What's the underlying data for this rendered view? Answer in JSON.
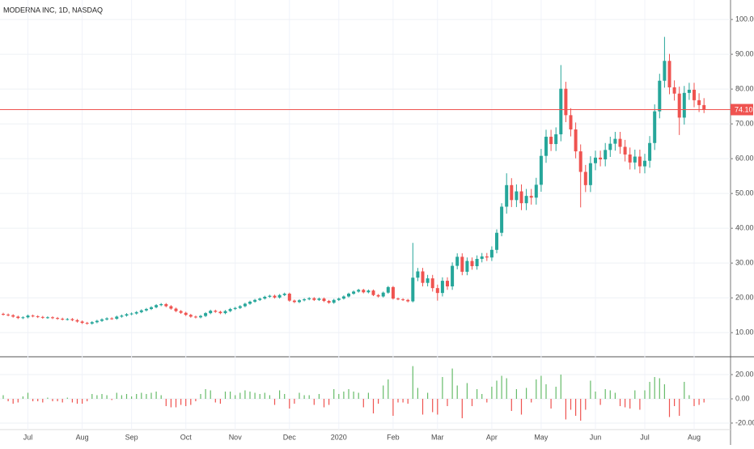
{
  "chart_data": [
    {
      "type": "candlestick",
      "title": "MODERNA INC, 1D, NASDAQ",
      "categories": [
        null,
        null,
        null,
        null,
        null,
        "Jul",
        null,
        null,
        null,
        null,
        null,
        null,
        null,
        null,
        null,
        null,
        "Aug",
        null,
        null,
        null,
        null,
        null,
        null,
        null,
        null,
        null,
        "Sep",
        null,
        null,
        null,
        null,
        null,
        null,
        null,
        null,
        null,
        null,
        "Oct",
        null,
        null,
        null,
        null,
        null,
        null,
        null,
        null,
        null,
        "Nov",
        null,
        null,
        null,
        null,
        null,
        null,
        null,
        null,
        null,
        null,
        "Dec",
        null,
        null,
        null,
        null,
        null,
        null,
        null,
        null,
        null,
        "2020",
        null,
        null,
        null,
        null,
        null,
        null,
        null,
        null,
        null,
        null,
        "Feb",
        null,
        null,
        null,
        null,
        null,
        null,
        null,
        null,
        "Mar",
        null,
        null,
        null,
        null,
        null,
        null,
        null,
        null,
        null,
        null,
        "Apr",
        null,
        null,
        null,
        null,
        null,
        null,
        null,
        null,
        null,
        "May",
        null,
        null,
        null,
        null,
        null,
        null,
        null,
        null,
        null,
        null,
        "Jun",
        null,
        null,
        null,
        null,
        null,
        null,
        null,
        null,
        null,
        "Jul",
        null,
        null,
        null,
        null,
        null,
        null,
        null,
        null,
        null,
        "Aug",
        null,
        null
      ],
      "open": [
        15.4,
        15.2,
        15.0,
        14.6,
        14.2,
        14.4,
        14.9,
        14.7,
        14.5,
        14.3,
        14.4,
        14.2,
        14.0,
        13.8,
        13.9,
        13.6,
        13.2,
        12.8,
        12.6,
        13.0,
        13.4,
        13.8,
        14.1,
        14.0,
        14.6,
        14.9,
        15.3,
        15.5,
        15.9,
        16.4,
        16.8,
        17.3,
        17.9,
        18.2,
        17.6,
        16.9,
        16.2,
        15.7,
        15.1,
        14.6,
        14.4,
        14.8,
        15.6,
        16.3,
        16.0,
        15.6,
        16.2,
        16.8,
        17.1,
        17.6,
        18.3,
        18.9,
        19.4,
        19.8,
        20.3,
        20.6,
        20.1,
        20.8,
        21.2,
        19.2,
        18.8,
        19.3,
        19.6,
        19.9,
        19.4,
        19.8,
        19.1,
        18.6,
        19.4,
        19.8,
        20.4,
        21.2,
        21.8,
        22.3,
        21.6,
        22.1,
        20.8,
        20.4,
        21.5,
        23.1,
        19.8,
        19.6,
        19.4,
        19.0,
        25.8,
        27.6,
        24.3,
        25.6,
        22.8,
        21.4,
        24.9,
        23.3,
        29.2,
        31.8,
        27.5,
        30.6,
        29.1,
        31.2,
        31.9,
        31.6,
        33.8,
        38.7,
        46.2,
        52.4,
        48.1,
        50.6,
        47.2,
        49.3,
        48.8,
        52.5,
        60.8,
        66.3,
        64.2,
        67.0,
        80.1,
        72.5,
        68.4,
        62.1,
        56.2,
        52.4,
        58.7,
        60.3,
        59.8,
        62.5,
        64.3,
        65.7,
        63.4,
        61.2,
        58.9,
        60.6,
        57.8,
        59.4,
        64.5,
        73.6,
        82.4,
        88.1,
        80.5,
        78.7,
        71.8,
        78.9,
        79.8,
        76.8,
        75.4
      ],
      "high": [
        15.7,
        15.5,
        15.3,
        14.9,
        14.7,
        15.2,
        15.2,
        15.0,
        14.8,
        14.7,
        14.7,
        14.5,
        14.3,
        14.2,
        14.2,
        13.9,
        13.5,
        13.1,
        13.3,
        13.7,
        14.1,
        14.4,
        14.4,
        14.9,
        15.2,
        15.6,
        15.8,
        16.2,
        16.7,
        17.1,
        17.6,
        18.2,
        18.5,
        18.5,
        17.9,
        17.2,
        16.5,
        16.0,
        15.4,
        14.9,
        15.1,
        15.9,
        16.6,
        16.6,
        16.3,
        16.5,
        17.1,
        17.4,
        17.9,
        18.6,
        19.2,
        19.7,
        20.1,
        20.6,
        20.9,
        20.9,
        21.1,
        21.5,
        21.5,
        19.5,
        19.6,
        19.9,
        20.2,
        20.2,
        20.1,
        20.1,
        19.4,
        19.7,
        20.1,
        20.7,
        21.5,
        22.1,
        22.6,
        22.6,
        22.4,
        22.4,
        21.1,
        21.8,
        23.4,
        23.4,
        20.1,
        19.9,
        19.7,
        35.8,
        28.6,
        28.6,
        26.6,
        26.6,
        23.8,
        25.9,
        25.9,
        30.2,
        32.8,
        32.8,
        31.6,
        31.6,
        32.2,
        32.9,
        32.9,
        34.8,
        39.7,
        47.2,
        55.8,
        54.4,
        52.6,
        52.6,
        51.3,
        51.3,
        54.5,
        62.8,
        68.3,
        68.3,
        69.0,
        86.9,
        82.1,
        74.5,
        70.4,
        64.1,
        58.2,
        60.7,
        62.3,
        62.3,
        64.5,
        66.3,
        67.7,
        67.7,
        65.4,
        63.2,
        62.6,
        62.6,
        61.4,
        66.5,
        75.6,
        84.4,
        95.0,
        90.1,
        82.5,
        80.7,
        80.9,
        81.8,
        81.8,
        78.8,
        77.4
      ],
      "low": [
        14.9,
        14.7,
        14.3,
        13.9,
        13.9,
        14.1,
        14.4,
        14.2,
        14.0,
        14.0,
        13.9,
        13.7,
        13.5,
        13.5,
        13.3,
        12.9,
        12.5,
        12.3,
        12.3,
        12.7,
        13.1,
        13.5,
        13.7,
        13.7,
        14.3,
        14.6,
        15.0,
        15.2,
        15.6,
        16.1,
        16.5,
        17.0,
        17.6,
        17.3,
        16.6,
        15.9,
        15.4,
        14.8,
        14.3,
        14.1,
        14.1,
        14.5,
        15.3,
        15.7,
        15.3,
        15.3,
        15.9,
        16.5,
        16.8,
        17.3,
        18.0,
        18.6,
        19.1,
        19.5,
        20.0,
        19.8,
        19.8,
        20.5,
        18.9,
        18.5,
        18.5,
        19.0,
        19.3,
        19.1,
        19.1,
        18.8,
        18.3,
        18.3,
        19.1,
        19.5,
        20.1,
        20.9,
        21.5,
        21.3,
        21.3,
        20.5,
        20.1,
        20.1,
        21.2,
        19.5,
        19.3,
        19.1,
        18.7,
        18.7,
        24.8,
        23.3,
        23.3,
        21.8,
        19.2,
        20.4,
        22.3,
        22.3,
        28.2,
        26.5,
        26.5,
        28.1,
        28.1,
        30.2,
        30.6,
        30.6,
        32.8,
        37.7,
        44.2,
        46.1,
        46.1,
        45.2,
        45.2,
        46.8,
        46.8,
        50.5,
        58.8,
        62.2,
        62.2,
        65.0,
        70.5,
        66.4,
        60.1,
        46.0,
        50.4,
        50.4,
        56.7,
        57.8,
        57.8,
        60.5,
        62.3,
        61.4,
        59.2,
        56.9,
        56.9,
        55.8,
        55.8,
        57.4,
        62.5,
        71.6,
        80.4,
        78.5,
        76.7,
        66.8,
        69.8,
        76.9,
        74.8,
        73.4,
        73.1
      ],
      "close": [
        15.2,
        15.0,
        14.6,
        14.2,
        14.4,
        14.9,
        14.7,
        14.5,
        14.3,
        14.4,
        14.2,
        14.0,
        13.8,
        13.9,
        13.6,
        13.2,
        12.8,
        12.6,
        13.0,
        13.4,
        13.8,
        14.1,
        14.0,
        14.6,
        14.9,
        15.3,
        15.5,
        15.9,
        16.4,
        16.8,
        17.3,
        17.9,
        18.2,
        17.6,
        16.9,
        16.2,
        15.7,
        15.1,
        14.6,
        14.4,
        14.8,
        15.6,
        16.3,
        16.0,
        15.6,
        16.2,
        16.8,
        17.1,
        17.6,
        18.3,
        18.9,
        19.4,
        19.8,
        20.3,
        20.6,
        20.1,
        20.8,
        21.2,
        19.2,
        18.8,
        19.3,
        19.6,
        19.9,
        19.4,
        19.8,
        19.1,
        18.6,
        19.4,
        19.8,
        20.4,
        21.2,
        21.8,
        22.3,
        21.6,
        22.1,
        20.8,
        20.4,
        21.5,
        23.1,
        19.8,
        19.6,
        19.4,
        19.0,
        25.8,
        27.6,
        24.3,
        25.6,
        22.8,
        21.4,
        24.9,
        23.3,
        29.2,
        31.8,
        27.5,
        30.6,
        29.1,
        31.2,
        31.9,
        31.6,
        33.8,
        38.7,
        46.2,
        52.4,
        48.1,
        50.6,
        47.2,
        49.3,
        48.8,
        52.5,
        60.8,
        66.3,
        64.2,
        67.0,
        80.1,
        72.5,
        68.4,
        62.1,
        56.2,
        52.4,
        58.7,
        60.3,
        59.8,
        62.5,
        64.3,
        65.7,
        63.4,
        61.2,
        58.9,
        60.6,
        57.8,
        59.4,
        64.5,
        73.6,
        82.4,
        88.1,
        80.5,
        78.7,
        71.8,
        78.9,
        79.8,
        76.8,
        75.4,
        74.1
      ],
      "up_color": "#26a69a",
      "down_color": "#ef5350",
      "last_price": {
        "value": 74.1,
        "label": "74.10"
      },
      "last_price_color": "#ef5350",
      "ylim": [
        3.3,
        105.6
      ],
      "yticks": [
        {
          "value": 10,
          "label": "10.00"
        },
        {
          "value": 20,
          "label": "20.00"
        },
        {
          "value": 30,
          "label": "30.00"
        },
        {
          "value": 40,
          "label": "40.00"
        },
        {
          "value": 50,
          "label": "50.00"
        },
        {
          "value": 60,
          "label": "60.00"
        },
        {
          "value": 70,
          "label": "70.00"
        },
        {
          "value": 80,
          "label": "80.00"
        },
        {
          "value": 90,
          "label": "90.00"
        },
        {
          "value": 100,
          "label": "100.00"
        }
      ],
      "grid": true
    },
    {
      "type": "bar",
      "values": [
        3,
        -2,
        -4,
        -3,
        2,
        5,
        -2,
        -2,
        -3,
        1,
        -2,
        -2,
        -3,
        1,
        -3,
        -4,
        -4,
        -2,
        4,
        3,
        4,
        3,
        -1,
        5,
        3,
        4,
        2,
        4,
        5,
        4,
        5,
        6,
        3,
        -6,
        -7,
        -7,
        -5,
        -6,
        -5,
        -2,
        4,
        8,
        7,
        -3,
        -4,
        6,
        6,
        3,
        5,
        7,
        6,
        5,
        4,
        5,
        3,
        -5,
        7,
        4,
        -8,
        -4,
        5,
        3,
        3,
        -5,
        4,
        -7,
        -5,
        8,
        4,
        6,
        8,
        6,
        5,
        -7,
        5,
        -12,
        -4,
        11,
        16,
        -14,
        -3,
        -3,
        -4,
        27,
        9,
        -13,
        5,
        -11,
        -13,
        18,
        -6,
        25,
        11,
        -16,
        13,
        -6,
        8,
        4,
        -3,
        10,
        15,
        19,
        17,
        -10,
        8,
        -13,
        9,
        -3,
        16,
        19,
        12,
        -8,
        10,
        20,
        -17,
        -9,
        -14,
        -18,
        -9,
        15,
        6,
        -5,
        8,
        7,
        5,
        -6,
        -7,
        -8,
        7,
        -9,
        7,
        14,
        18,
        17,
        12,
        -15,
        -6,
        -14,
        14,
        3,
        -6,
        -5,
        -3
      ],
      "up_color": "#66bb6a",
      "down_color": "#ef5350",
      "ylim": [
        -24.7,
        34.7
      ],
      "yticks": [
        {
          "value": 20,
          "label": "20.00"
        },
        {
          "value": 0,
          "label": "0.00"
        },
        {
          "value": -20,
          "label": "-20.00"
        }
      ],
      "grid": true
    }
  ]
}
